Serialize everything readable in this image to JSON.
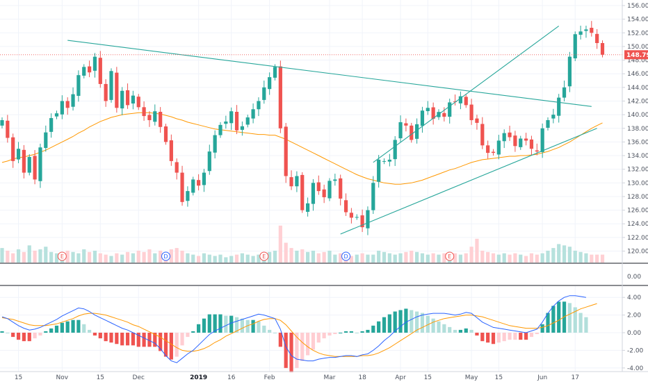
{
  "chart_data": {
    "type": "candlestick",
    "price_axis": {
      "ticks": [
        "156.00",
        "154.00",
        "152.00",
        "150.00",
        "148.00",
        "146.00",
        "144.00",
        "142.00",
        "140.00",
        "138.00",
        "136.00",
        "134.00",
        "132.00",
        "130.00",
        "128.00",
        "126.00",
        "124.00",
        "122.00",
        "120.00"
      ],
      "range": [
        119,
        156.5
      ],
      "last_price": "148.79",
      "last_price_value": 148.79
    },
    "macd_axis": {
      "ticks": [
        "4.00",
        "2.00",
        "0.00",
        "-2.00",
        "-4.00"
      ],
      "range": [
        -4.7,
        5.0
      ],
      "extra_tick": "0.00"
    },
    "x_axis": {
      "labels": [
        {
          "i": 3,
          "text": "15",
          "bold": false
        },
        {
          "i": 11,
          "text": "Nov",
          "bold": false
        },
        {
          "i": 18,
          "text": "15",
          "bold": false
        },
        {
          "i": 25,
          "text": "Dec",
          "bold": false
        },
        {
          "i": 36,
          "text": "2019",
          "bold": true
        },
        {
          "i": 42,
          "text": "16",
          "bold": false
        },
        {
          "i": 49,
          "text": "Feb",
          "bold": false
        },
        {
          "i": 60,
          "text": "Mar",
          "bold": false
        },
        {
          "i": 66,
          "text": "18",
          "bold": false
        },
        {
          "i": 73,
          "text": "Apr",
          "bold": false
        },
        {
          "i": 78,
          "text": "15",
          "bold": false
        },
        {
          "i": 86,
          "text": "May",
          "bold": false
        },
        {
          "i": 91,
          "text": "15",
          "bold": false
        },
        {
          "i": 99,
          "text": "Jun",
          "bold": false
        },
        {
          "i": 105,
          "text": "17",
          "bold": false
        }
      ]
    },
    "close": [
      139.2,
      136.6,
      133.2,
      135.0,
      131.5,
      133.8,
      130.5,
      135.2,
      137.4,
      139.5,
      140.2,
      142.0,
      141.0,
      143.0,
      145.8,
      147.0,
      146.2,
      148.5,
      144.5,
      142.0,
      146.4,
      141.0,
      143.5,
      141.4,
      142.8,
      141.1,
      139.8,
      139.2,
      140.5,
      138.2,
      136.0,
      133.2,
      131.5,
      127.2,
      128.8,
      130.5,
      129.6,
      131.5,
      134.6,
      137.0,
      138.5,
      139.0,
      140.5,
      137.7,
      138.3,
      139.6,
      140.8,
      142.0,
      144.0,
      145.5,
      147.0,
      138.0,
      131.0,
      129.5,
      131.0,
      126.0,
      127.0,
      130.0,
      128.8,
      127.9,
      130.3,
      130.5,
      127.7,
      125.7,
      124.9,
      125.0,
      123.5,
      126.0,
      130.0,
      133.4,
      133.2,
      133.4,
      136.3,
      138.9,
      138.4,
      136.3,
      138.6,
      140.6,
      141.0,
      139.4,
      140.4,
      139.7,
      141.8,
      141.9,
      142.7,
      141.4,
      139.2,
      138.8,
      135.5,
      134.4,
      134.4,
      136.2,
      137.3,
      136.7,
      135.4,
      136.5,
      136.2,
      135.0,
      134.6,
      138.0,
      139.2,
      140.0,
      142.5,
      144.0,
      148.5,
      151.8,
      152.2,
      152.5,
      152.0,
      150.5,
      148.8
    ],
    "mas": [
      133.0,
      133.2,
      133.5,
      133.7,
      133.8,
      134.0,
      134.2,
      134.5,
      134.8,
      135.2,
      135.6,
      136.0,
      136.4,
      136.8,
      137.3,
      137.7,
      138.2,
      138.6,
      139.0,
      139.3,
      139.6,
      139.8,
      140.0,
      140.1,
      140.2,
      140.3,
      140.3,
      140.3,
      140.2,
      140.1,
      139.9,
      139.7,
      139.4,
      139.2,
      138.9,
      138.7,
      138.5,
      138.3,
      138.1,
      137.9,
      137.8,
      137.7,
      137.6,
      137.5,
      137.4,
      137.3,
      137.2,
      137.1,
      137.1,
      137.0,
      137.0,
      136.7,
      136.4,
      136.0,
      135.6,
      135.2,
      134.8,
      134.4,
      134.0,
      133.6,
      133.2,
      132.8,
      132.4,
      132.0,
      131.6,
      131.2,
      130.9,
      130.6,
      130.4,
      130.2,
      130.0,
      129.9,
      129.8,
      129.8,
      129.9,
      130.0,
      130.2,
      130.4,
      130.7,
      131.0,
      131.3,
      131.6,
      131.9,
      132.1,
      132.4,
      132.7,
      133.0,
      133.2,
      133.4,
      133.5,
      133.6,
      133.7,
      133.8,
      133.9,
      133.9,
      134.0,
      134.0,
      134.1,
      134.2,
      134.4,
      134.6,
      134.9,
      135.2,
      135.6,
      136.0,
      136.5,
      137.0,
      137.5,
      138.0,
      138.4,
      138.8
    ],
    "volume": [
      0.55,
      0.45,
      0.35,
      0.5,
      0.4,
      0.65,
      0.45,
      0.5,
      0.6,
      0.4,
      0.35,
      0.3,
      0.45,
      0.4,
      0.35,
      0.5,
      0.4,
      0.45,
      0.35,
      0.3,
      0.25,
      0.35,
      0.3,
      0.4,
      0.35,
      0.45,
      0.4,
      0.5,
      0.35,
      0.45,
      0.4,
      0.5,
      0.55,
      0.45,
      0.35,
      0.3,
      0.25,
      0.35,
      0.3,
      0.25,
      0.3,
      0.2,
      0.25,
      0.3,
      0.35,
      0.3,
      0.25,
      0.3,
      0.35,
      0.4,
      0.45,
      1.4,
      0.75,
      0.55,
      0.45,
      0.5,
      0.4,
      0.45,
      0.35,
      0.4,
      0.45,
      0.3,
      0.35,
      0.3,
      0.25,
      0.3,
      0.35,
      0.3,
      0.3,
      0.45,
      0.4,
      0.35,
      0.3,
      0.35,
      0.4,
      0.45,
      0.4,
      0.35,
      0.3,
      0.35,
      0.3,
      0.35,
      0.4,
      0.35,
      0.3,
      0.35,
      0.6,
      0.9,
      0.45,
      0.4,
      0.35,
      0.3,
      0.35,
      0.3,
      0.35,
      0.3,
      0.25,
      0.35,
      0.3,
      0.35,
      0.45,
      0.55,
      0.7,
      0.65,
      0.6,
      0.45,
      0.4,
      0.35,
      0.3,
      0.3,
      0.3
    ],
    "macd_line": [
      1.8,
      1.6,
      1.2,
      0.8,
      0.5,
      0.3,
      0.4,
      0.6,
      0.9,
      1.2,
      1.5,
      1.9,
      2.2,
      2.5,
      2.8,
      2.7,
      2.4,
      2.0,
      1.7,
      1.4,
      1.1,
      0.8,
      0.5,
      0.3,
      0.0,
      -0.3,
      -0.6,
      -0.9,
      -1.2,
      -1.8,
      -2.6,
      -3.2,
      -3.4,
      -2.9,
      -2.4,
      -2.0,
      -1.4,
      -0.8,
      -0.2,
      0.2,
      0.5,
      0.8,
      1.1,
      1.3,
      1.5,
      1.7,
      1.9,
      2.1,
      2.0,
      1.8,
      1.6,
      0.4,
      -1.6,
      -2.6,
      -3.0,
      -3.1,
      -3.2,
      -3.2,
      -3.0,
      -2.9,
      -2.8,
      -2.8,
      -2.7,
      -2.6,
      -2.6,
      -2.7,
      -2.5,
      -2.4,
      -2.0,
      -1.5,
      -0.9,
      -0.4,
      0.2,
      0.7,
      1.2,
      1.5,
      1.8,
      2.0,
      2.1,
      2.2,
      2.2,
      2.2,
      2.1,
      2.0,
      2.1,
      2.3,
      2.2,
      1.7,
      1.2,
      0.9,
      0.6,
      0.5,
      0.4,
      0.3,
      0.2,
      0.1,
      0.0,
      0.2,
      0.4,
      1.2,
      2.2,
      3.0,
      3.6,
      4.0,
      4.2,
      4.2,
      4.1,
      4.0
    ],
    "signal_line": [
      1.7,
      1.6,
      1.5,
      1.3,
      1.1,
      0.9,
      0.8,
      0.8,
      0.8,
      0.9,
      1.0,
      1.2,
      1.4,
      1.6,
      1.9,
      2.1,
      2.2,
      2.2,
      2.1,
      2.0,
      1.8,
      1.6,
      1.4,
      1.2,
      0.9,
      0.7,
      0.4,
      0.1,
      -0.2,
      -0.5,
      -0.9,
      -1.3,
      -1.7,
      -2.0,
      -2.1,
      -2.1,
      -2.0,
      -1.8,
      -1.5,
      -1.1,
      -0.8,
      -0.4,
      -0.1,
      0.2,
      0.5,
      0.8,
      1.0,
      1.3,
      1.5,
      1.6,
      1.6,
      1.4,
      0.9,
      0.2,
      -0.5,
      -1.1,
      -1.6,
      -2.0,
      -2.3,
      -2.5,
      -2.6,
      -2.7,
      -2.7,
      -2.7,
      -2.7,
      -2.7,
      -2.6,
      -2.6,
      -2.5,
      -2.3,
      -2.0,
      -1.7,
      -1.3,
      -0.9,
      -0.5,
      -0.1,
      0.3,
      0.6,
      0.9,
      1.2,
      1.4,
      1.6,
      1.7,
      1.8,
      1.9,
      2.0,
      2.0,
      1.9,
      1.8,
      1.6,
      1.4,
      1.2,
      1.0,
      0.8,
      0.7,
      0.6,
      0.5,
      0.5,
      0.5,
      0.6,
      0.8,
      1.1,
      1.4,
      1.8,
      2.1,
      2.4,
      2.7,
      2.9,
      3.1,
      3.3
    ],
    "events": [
      {
        "i": 11,
        "label": "E",
        "type": "earnings"
      },
      {
        "i": 30,
        "label": "D",
        "type": "dividend"
      },
      {
        "i": 48,
        "label": "E",
        "type": "earnings"
      },
      {
        "i": 63,
        "label": "D",
        "type": "dividend"
      },
      {
        "i": 82,
        "label": "E",
        "type": "earnings"
      }
    ],
    "trendlines": [
      {
        "name": "descending-resistance",
        "from": {
          "i": 12,
          "p": 150.9
        },
        "to": {
          "i": 108,
          "p": 141.2
        }
      },
      {
        "name": "ascending-support",
        "from": {
          "i": 62,
          "p": 122.5
        },
        "to": {
          "i": 109,
          "p": 138.0
        }
      },
      {
        "name": "channel-upper",
        "from": {
          "i": 68,
          "p": 133.0
        },
        "to": {
          "i": 102,
          "p": 153.0
        }
      }
    ]
  },
  "colors": {
    "up": "#26a69a",
    "down": "#ef5350",
    "up_light": "#b2dfdb",
    "down_light": "#ffcdd2",
    "ma": "#ff9800",
    "macd": "#2962ff",
    "signal": "#ff9800",
    "trend": "#26a69a",
    "last_price": "#ef5350",
    "grid": "#f0f3fa",
    "axis": "#d1d4dc"
  }
}
